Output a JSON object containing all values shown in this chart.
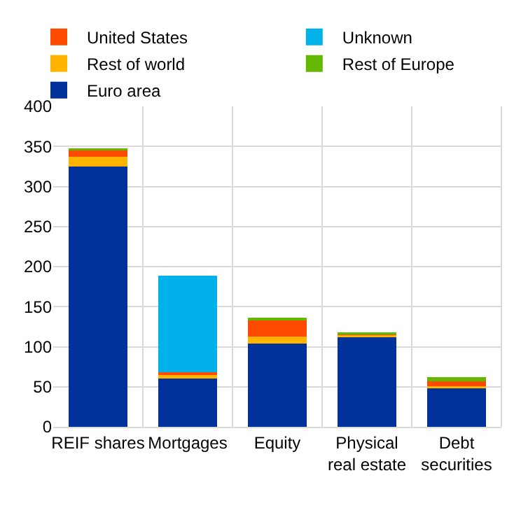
{
  "chart_data": {
    "type": "bar",
    "stacked": true,
    "categories": [
      "REIF shares",
      "Mortgages",
      "Equity",
      "Physical real estate",
      "Debt securities"
    ],
    "series": [
      {
        "name": "Euro area",
        "color": "#003299",
        "values": [
          325,
          60,
          104,
          112,
          48
        ]
      },
      {
        "name": "Rest of world",
        "color": "#ffb400",
        "values": [
          12,
          5,
          9,
          2,
          3
        ]
      },
      {
        "name": "United States",
        "color": "#ff4b00",
        "values": [
          8,
          3,
          20,
          1,
          6
        ]
      },
      {
        "name": "Rest of Europe",
        "color": "#65b800",
        "values": [
          3,
          0,
          3,
          3,
          5
        ]
      },
      {
        "name": "Unknown",
        "color": "#00b1ea",
        "values": [
          0,
          121,
          0,
          0,
          0
        ]
      }
    ],
    "ylim": [
      0,
      400
    ],
    "yticks": [
      0,
      50,
      100,
      150,
      200,
      250,
      300,
      350,
      400
    ],
    "grid": true,
    "legend": "top"
  }
}
